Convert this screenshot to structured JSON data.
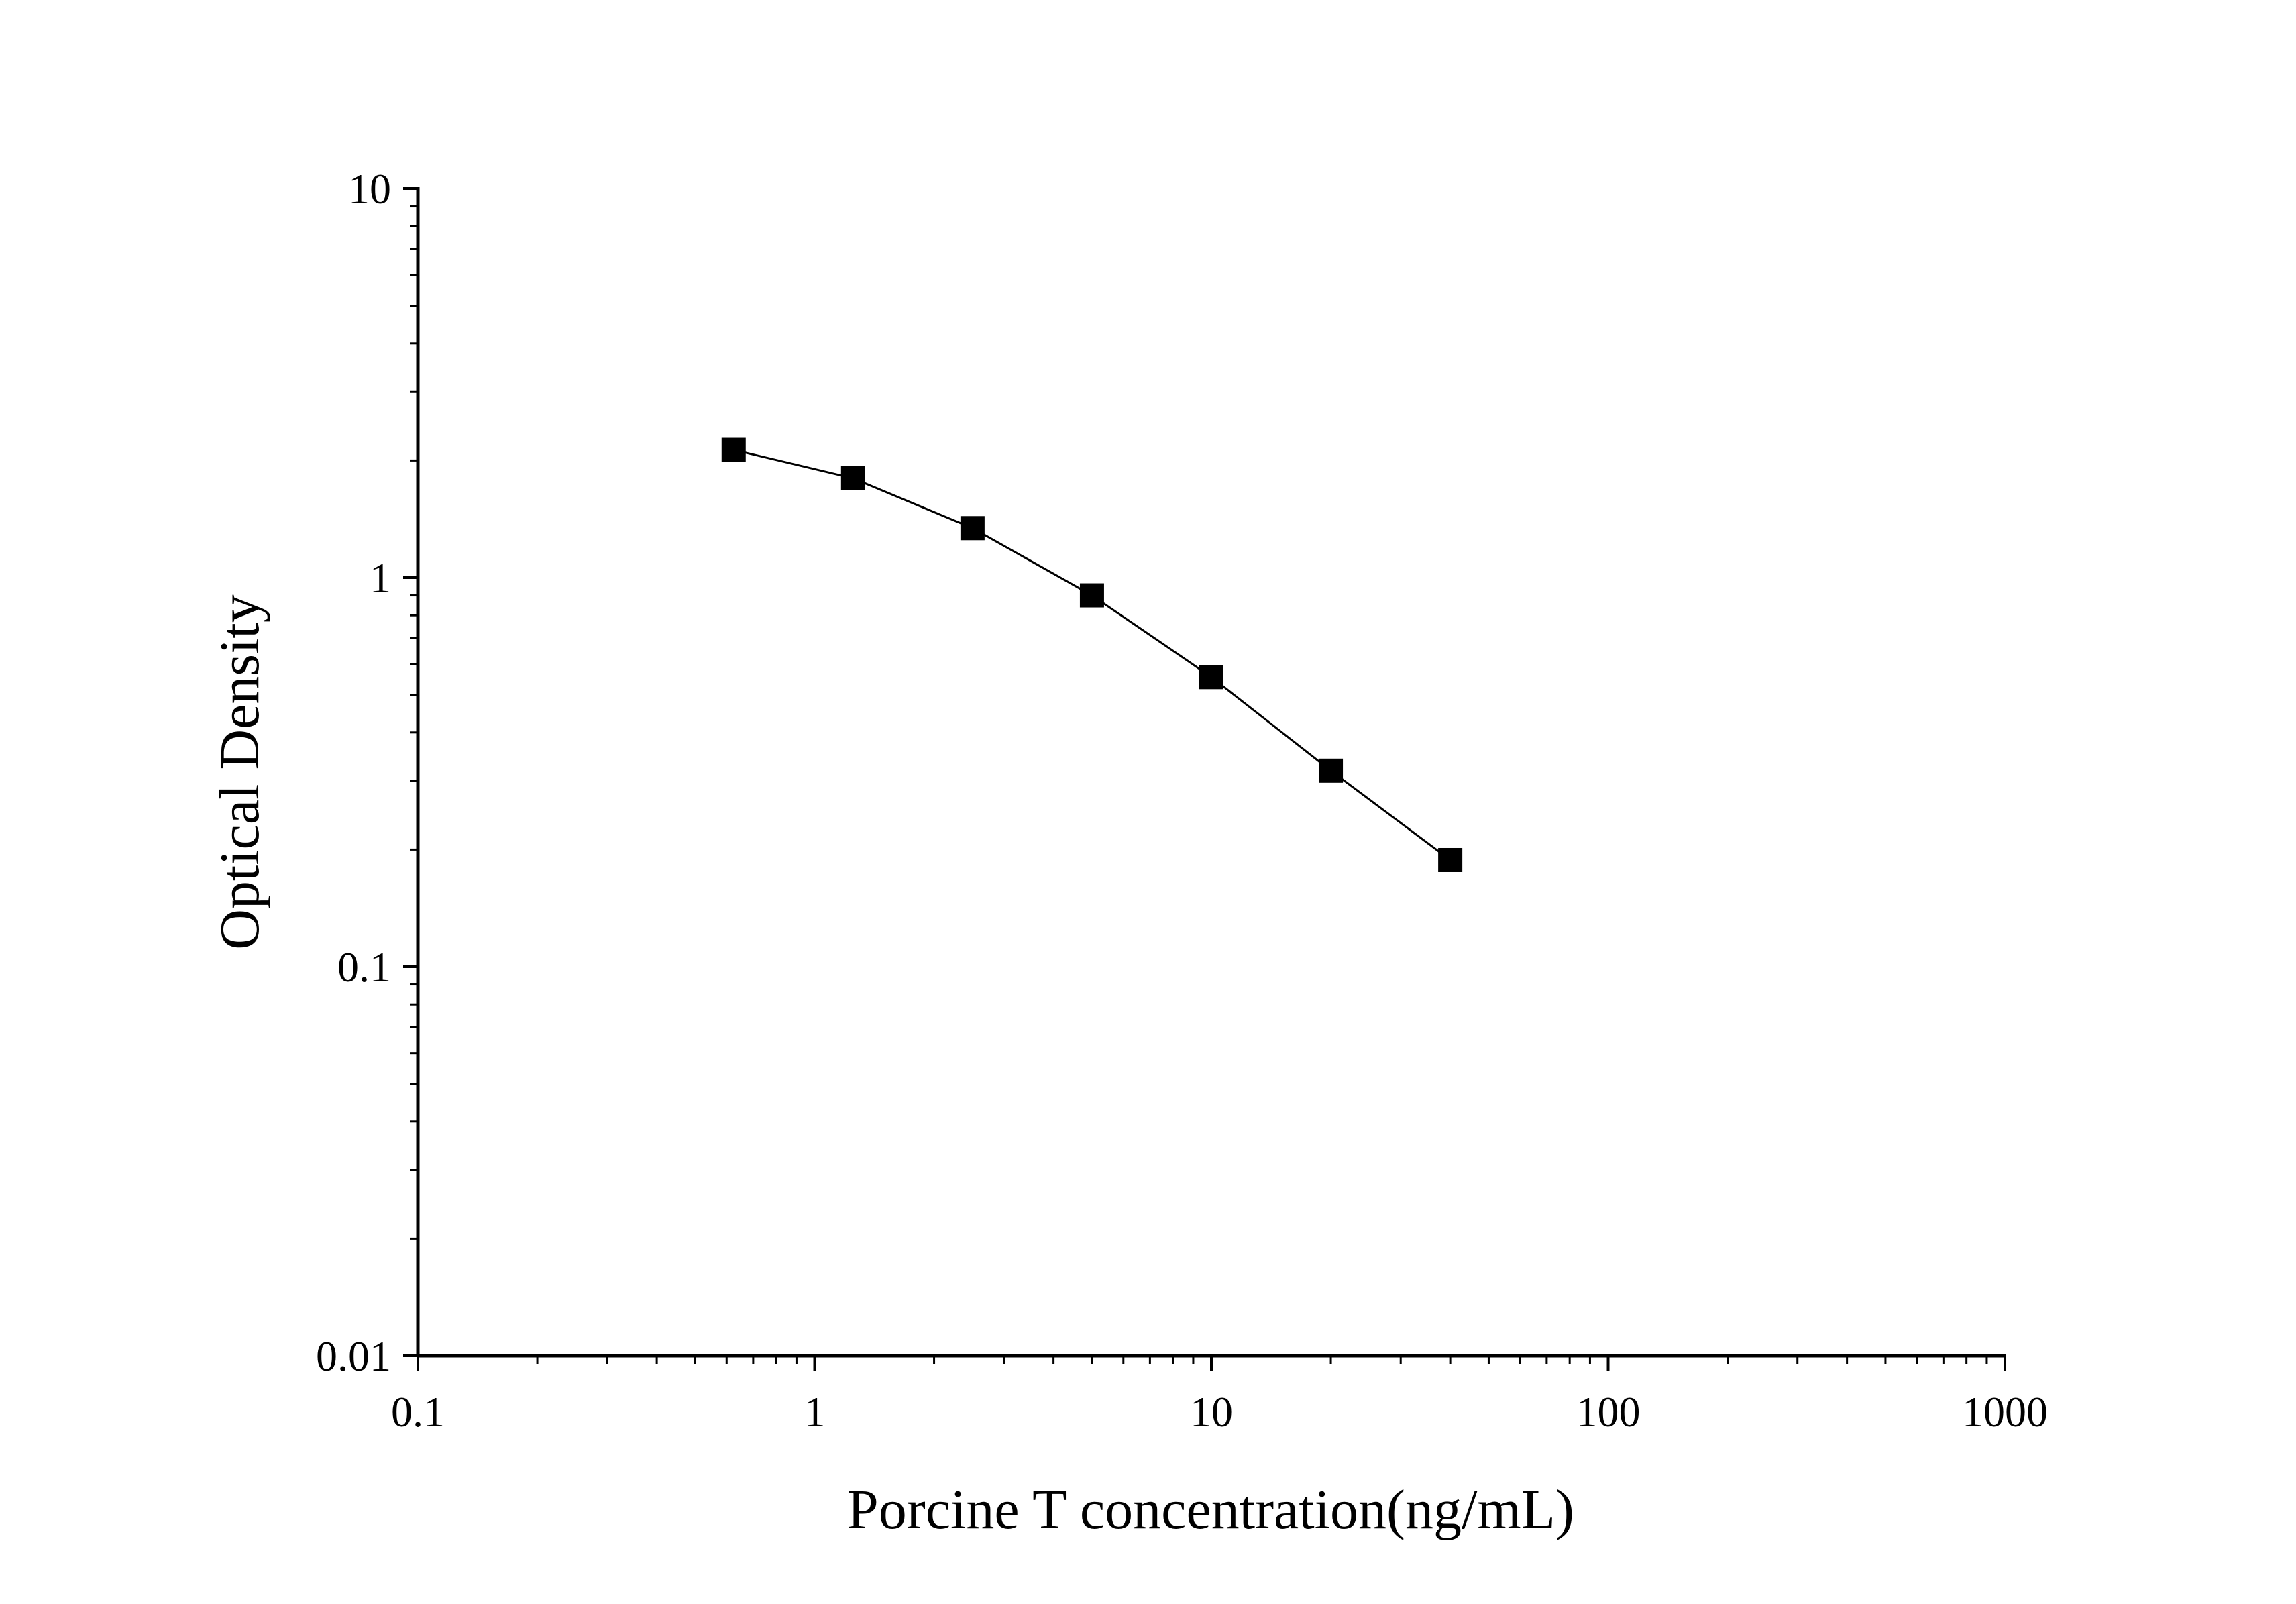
{
  "chart_data": {
    "type": "line",
    "title": "",
    "xlabel": "Porcine T concentration(ng/mL)",
    "ylabel": "Optical Density",
    "x_scale": "log",
    "y_scale": "log",
    "xlim": [
      0.1,
      1000
    ],
    "ylim": [
      0.01,
      10
    ],
    "x_ticks": [
      "0.1",
      "1",
      "10",
      "100",
      "1000"
    ],
    "y_ticks": [
      "0.01",
      "0.1",
      "1",
      "10"
    ],
    "grid": false,
    "legend": "none",
    "marker": "square",
    "color": "#000000",
    "series": [
      {
        "x": [
          0.625,
          1.25,
          2.5,
          5,
          10,
          20,
          40
        ],
        "y": [
          2.13,
          1.8,
          1.34,
          0.9,
          0.555,
          0.319,
          0.188
        ]
      }
    ]
  }
}
